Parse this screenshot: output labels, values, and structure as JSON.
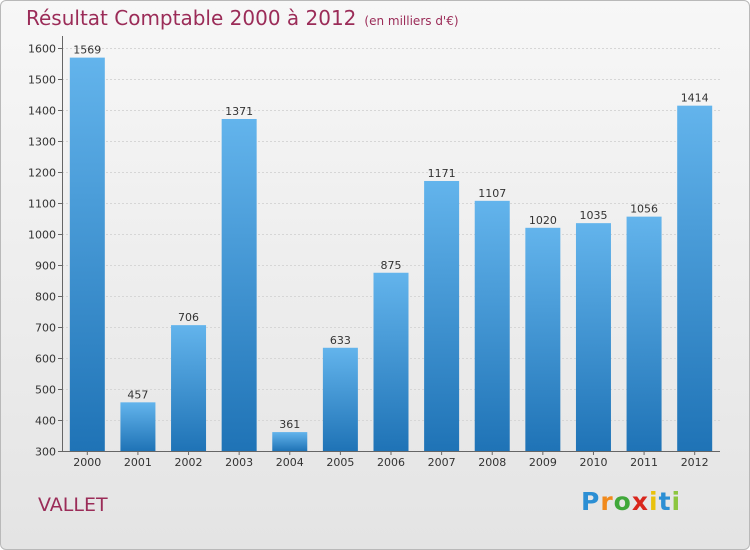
{
  "title": "Résultat Comptable 2000 à 2012",
  "subtitle": "(en milliers d'€)",
  "place": "VALLET",
  "logo": {
    "letters": [
      "P",
      "r",
      "o",
      "x",
      "i",
      "t",
      "i"
    ],
    "colors": [
      "#2c8fd4",
      "#f18a1c",
      "#40a83a",
      "#d9261c",
      "#e9c20c",
      "#2c8fd4",
      "#8cc63f"
    ]
  },
  "colors": {
    "bar_light": "#63b4ec",
    "bar_dark": "#1f73b6",
    "title": "#9b2c58"
  },
  "chart_data": {
    "type": "bar",
    "title": "Résultat Comptable 2000 à 2012",
    "subtitle": "(en milliers d'€)",
    "xlabel": "",
    "ylabel": "",
    "categories": [
      "2000",
      "2001",
      "2002",
      "2003",
      "2004",
      "2005",
      "2006",
      "2007",
      "2008",
      "2009",
      "2010",
      "2011",
      "2012"
    ],
    "values": [
      1569,
      457,
      706,
      1371,
      361,
      633,
      875,
      1171,
      1107,
      1020,
      1035,
      1056,
      1414
    ],
    "ylim": [
      300,
      1600
    ],
    "yticks": [
      300,
      400,
      500,
      600,
      700,
      800,
      900,
      1000,
      1100,
      1200,
      1300,
      1400,
      1500,
      1600
    ],
    "grid": true
  }
}
